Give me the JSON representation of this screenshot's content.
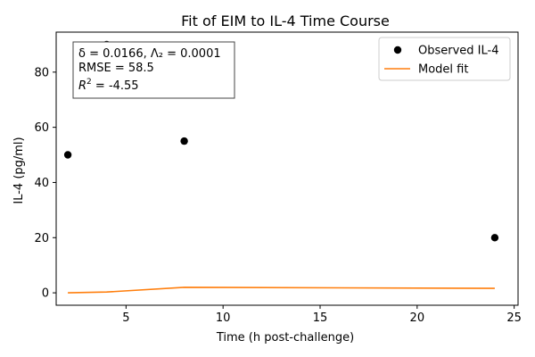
{
  "chart_data": {
    "type": "scatter",
    "title": "Fit of EIM to IL-4 Time Course",
    "xlabel": "Time (h post-challenge)",
    "ylabel": "IL-4 (pg/ml)",
    "xlim": [
      1.4,
      25.2
    ],
    "ylim": [
      -4.5,
      94.5
    ],
    "xticks": [
      5,
      10,
      15,
      20,
      25
    ],
    "yticks": [
      0,
      20,
      40,
      60,
      80
    ],
    "grid": false,
    "legend_position": "top-right",
    "series": [
      {
        "name": "Observed IL-4",
        "kind": "scatter",
        "color": "#000000",
        "x": [
          2,
          4,
          8,
          24
        ],
        "y": [
          50,
          90,
          55,
          20
        ]
      },
      {
        "name": "Model fit",
        "kind": "line",
        "color": "#ff7f0e",
        "x": [
          2,
          4,
          8,
          24
        ],
        "y": [
          0.0,
          0.3,
          2.0,
          1.6
        ]
      }
    ],
    "annotation": {
      "lines": [
        "δ = 0.0166, Λ₂ = 0.0001",
        "RMSE = 58.5",
        "R^2 = -4.55"
      ],
      "r2_label": "R",
      "r2_sup": "2",
      "r2_value": " = -4.55"
    }
  }
}
